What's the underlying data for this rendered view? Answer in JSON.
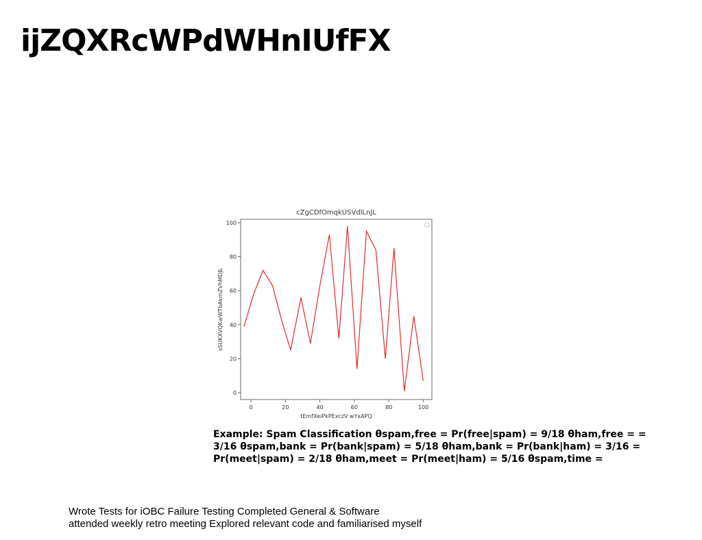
{
  "slide": {
    "title": "ijZQXRcWPdWHnIUfFX",
    "caption": "Example: Spam Classification θspam,free = Pr(free|spam) = 9/18 θham,free = = 3/16 θspam,bank = Pr(bank|spam) = 5/18 θham,bank = Pr(bank|ham) = 3/16 = Pr(meet|spam) = 2/18 θham,meet = Pr(meet|ham) = 5/16 θspam,time =",
    "notes": [
      "Wrote Tests for iOBC Failure Testing  Completed General & Software",
      "attended weekly retro meeting  Explored relevant code and familiarised myself"
    ]
  },
  "chart_data": {
    "type": "line",
    "title": "cZgCDfOmqkUSVdlLnJL",
    "xlabel": "tEmfXeiPkPExczV wYxAPQ",
    "ylabel": "sSUKXVQKwWTbAkmZVhMDJL",
    "xlim": [
      -6,
      105
    ],
    "ylim": [
      -4,
      102
    ],
    "xticks": [
      0,
      20,
      40,
      60,
      80,
      100
    ],
    "yticks": [
      0,
      20,
      40,
      60,
      80,
      100
    ],
    "grid": false,
    "legend": "top-right",
    "series": [
      {
        "color": "#e8262a",
        "x": [
          -4,
          1.5,
          7,
          12.5,
          18,
          23,
          29,
          34.5,
          40,
          45.5,
          51,
          56,
          61.5,
          67,
          72.5,
          78,
          83,
          89,
          94.5,
          100
        ],
        "y": [
          39,
          58,
          72,
          63,
          42,
          25,
          56,
          29,
          63,
          93,
          32,
          98,
          14,
          95,
          84,
          20,
          85,
          1,
          45,
          7
        ]
      }
    ]
  }
}
